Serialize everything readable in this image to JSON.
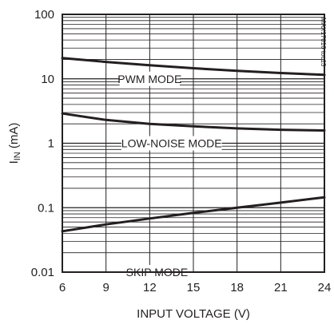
{
  "chart_data": {
    "type": "line",
    "title": "",
    "xlabel": "INPUT VOLTAGE (V)",
    "ylabel_main": "I",
    "ylabel_sub": "IN",
    "ylabel_unit": " (mA)",
    "xlim": [
      6,
      24
    ],
    "ylim": [
      0.01,
      100
    ],
    "y_scale": "log",
    "grid": true,
    "watermark": "MAX17016 toc13",
    "x_ticks": [
      6,
      9,
      12,
      15,
      18,
      21,
      24
    ],
    "y_ticks": [
      0.01,
      0.1,
      1,
      10,
      100
    ],
    "x_tick_labels": [
      "6",
      "9",
      "12",
      "15",
      "18",
      "21",
      "24"
    ],
    "y_tick_labels": [
      "0.01",
      "0.1",
      "1",
      "10",
      "100"
    ],
    "series": [
      {
        "name": "PWM MODE",
        "x": [
          6,
          9,
          12,
          15,
          18,
          21,
          24
        ],
        "y": [
          21,
          18.3,
          16.2,
          14.6,
          13.3,
          12.3,
          11.5
        ],
        "label_at": [
          12,
          10
        ]
      },
      {
        "name": "LOW-NOISE MODE",
        "x": [
          6,
          9,
          12,
          15,
          18,
          21,
          24
        ],
        "y": [
          2.9,
          2.3,
          2.0,
          1.83,
          1.7,
          1.62,
          1.58
        ],
        "label_at": [
          13.5,
          1
        ]
      },
      {
        "name": "SKIP MODE",
        "x": [
          6,
          9,
          12,
          15,
          18,
          21,
          24
        ],
        "y": [
          0.043,
          0.055,
          0.068,
          0.083,
          0.1,
          0.12,
          0.145
        ],
        "label_at": [
          12.5,
          0.01
        ]
      }
    ]
  }
}
